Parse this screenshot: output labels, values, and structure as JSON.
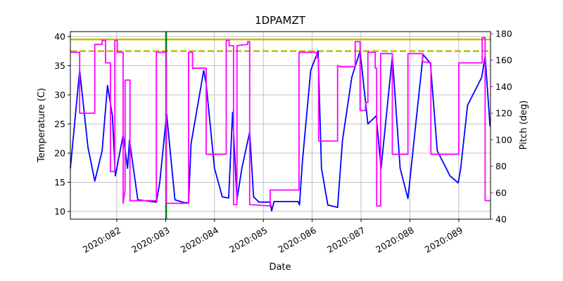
{
  "chart_data": {
    "type": "line",
    "title": "1DPAMZT",
    "xlabel": "Date",
    "ylabel": "Temperature (C)",
    "y2label": "Pitch (deg)",
    "y2color": "#ff00ff",
    "grid": true,
    "xlim": [
      81.05,
      89.65
    ],
    "xticks": [
      {
        "value": 82,
        "label": "2020:082"
      },
      {
        "value": 83,
        "label": "2020:083"
      },
      {
        "value": 84,
        "label": "2020:084"
      },
      {
        "value": 85,
        "label": "2020:085"
      },
      {
        "value": 86,
        "label": "2020:086"
      },
      {
        "value": 87,
        "label": "2020:087"
      },
      {
        "value": 88,
        "label": "2020:088"
      },
      {
        "value": 89,
        "label": "2020:089"
      }
    ],
    "ylim": [
      8.67,
      40.84
    ],
    "yticks": [
      10,
      15,
      20,
      25,
      30,
      35,
      40
    ],
    "y2lim": [
      40,
      181.6
    ],
    "y2ticks": [
      40,
      60,
      80,
      100,
      120,
      140,
      160,
      180
    ],
    "hlines": [
      {
        "value": 39.5,
        "color": "#bfbf00",
        "dashed": false
      },
      {
        "value": 37.5,
        "color": "#bfbf00",
        "dashed": true
      }
    ],
    "vlines": [
      {
        "value": 83.01,
        "color": "#008000"
      }
    ],
    "series": [
      {
        "color": "#0000ff",
        "x": [
          81.05,
          81.24,
          81.41,
          81.55,
          81.7,
          81.81,
          81.91,
          81.97,
          82.13,
          82.22,
          82.26,
          82.43,
          82.81,
          82.88,
          83.02,
          83.19,
          83.38,
          83.47,
          83.52,
          83.78,
          83.83,
          84.0,
          84.16,
          84.29,
          84.37,
          84.46,
          84.56,
          84.72,
          84.8,
          84.91,
          85.14,
          85.17,
          85.22,
          85.71,
          85.74,
          85.8,
          85.97,
          86.12,
          86.19,
          86.32,
          86.52,
          86.62,
          86.81,
          86.98,
          87.14,
          87.31,
          87.41,
          87.64,
          87.8,
          87.96,
          88.1,
          88.27,
          88.42,
          88.56,
          88.82,
          88.99,
          89.04,
          89.18,
          89.47,
          89.54,
          89.64
        ],
        "values": [
          17.4,
          34.2,
          21,
          15.2,
          20.4,
          31.6,
          26.4,
          16.1,
          23.1,
          17.4,
          22.2,
          12,
          11.6,
          15,
          26.7,
          12,
          11.5,
          11.5,
          21.6,
          34.2,
          31.8,
          17.4,
          12.5,
          12.3,
          27,
          12,
          17.4,
          23.6,
          12.5,
          11.6,
          11.6,
          10.1,
          11.7,
          11.7,
          11.1,
          18.6,
          34.2,
          37.5,
          17.4,
          11.1,
          10.7,
          22.2,
          33,
          37.5,
          25,
          26.4,
          17.4,
          36.6,
          17.4,
          12.2,
          23.4,
          36.9,
          35.4,
          20.4,
          16.1,
          14.9,
          17.4,
          28.2,
          33,
          36.6,
          24.6
        ]
      },
      {
        "color": "#ff00ff",
        "axis": "y2",
        "x": [
          81.05,
          81.24,
          81.24,
          81.55,
          81.55,
          81.7,
          81.7,
          81.77,
          81.77,
          81.87,
          81.87,
          81.96,
          81.96,
          82.01,
          82.01,
          82.13,
          82.13,
          82.17,
          82.17,
          82.27,
          82.27,
          82.81,
          82.81,
          83.01,
          83.01,
          83.47,
          83.47,
          83.55,
          83.55,
          83.83,
          83.83,
          84.24,
          84.24,
          84.3,
          84.3,
          84.39,
          84.39,
          84.46,
          84.46,
          84.68,
          84.68,
          84.72,
          84.72,
          85.14,
          85.14,
          85.73,
          85.73,
          86.09,
          86.09,
          86.13,
          86.13,
          86.52,
          86.52,
          86.58,
          86.88,
          86.88,
          86.98,
          86.98,
          87.09,
          87.09,
          87.14,
          87.14,
          87.29,
          87.29,
          87.32,
          87.32,
          87.4,
          87.4,
          87.64,
          87.64,
          87.96,
          87.96,
          88.26,
          88.26,
          88.43,
          88.43,
          89.0,
          89.0,
          89.48,
          89.48,
          89.54,
          89.54,
          89.64
        ],
        "values": [
          166,
          166,
          120,
          120,
          172,
          172,
          175,
          175,
          158,
          158,
          76,
          76,
          175,
          175,
          166,
          166,
          52,
          62,
          145,
          145,
          54,
          54,
          166,
          166,
          52,
          52,
          166,
          166,
          154,
          154,
          89,
          89,
          175,
          175,
          171,
          171,
          51,
          51,
          171,
          172,
          174,
          174,
          51,
          50,
          62,
          62,
          166,
          166,
          162,
          162,
          99,
          99,
          156,
          155,
          155,
          174,
          174,
          122,
          122,
          128,
          128,
          166,
          166,
          154,
          154,
          50,
          50,
          165,
          165,
          89,
          89,
          165,
          165,
          159,
          158,
          89,
          89,
          158,
          158,
          177,
          177,
          54,
          54
        ]
      }
    ]
  }
}
